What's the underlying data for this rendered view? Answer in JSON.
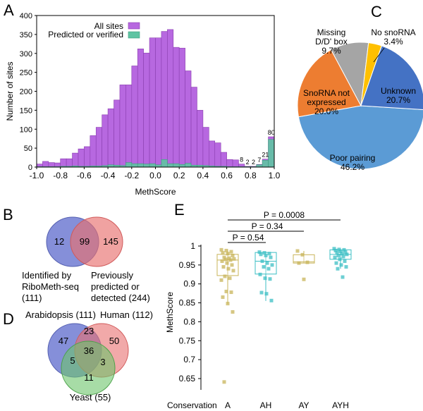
{
  "panels": {
    "A": "A",
    "B": "B",
    "C": "C",
    "D": "D",
    "E": "E"
  },
  "chart_data": [
    {
      "type": "bar",
      "panel": "A",
      "xlabel": "MethScore",
      "ylabel": "Number of sites",
      "xlim": [
        -1.0,
        1.0
      ],
      "ylim": [
        0,
        400
      ],
      "xticks": [
        "-1.0",
        "-0.8",
        "-0.6",
        "-0.4",
        "-0.2",
        "0.0",
        "0.2",
        "0.4",
        "0.6",
        "0.8",
        "1.0"
      ],
      "yticks": [
        "0",
        "50",
        "100",
        "150",
        "200",
        "250",
        "300",
        "350",
        "400"
      ],
      "legend_position": "top-left",
      "bin_starts": [
        -1.0,
        -0.95,
        -0.9,
        -0.85,
        -0.8,
        -0.75,
        -0.7,
        -0.65,
        -0.6,
        -0.55,
        -0.5,
        -0.45,
        -0.4,
        -0.35,
        -0.3,
        -0.25,
        -0.2,
        -0.15,
        -0.1,
        -0.05,
        0.0,
        0.05,
        0.1,
        0.15,
        0.2,
        0.25,
        0.3,
        0.35,
        0.4,
        0.45,
        0.5,
        0.55,
        0.6,
        0.65,
        0.7,
        0.75,
        0.8,
        0.85,
        0.9,
        0.95
      ],
      "bin_width": 0.05,
      "series": [
        {
          "name": "All sites",
          "color": "#b768e0",
          "values": [
            8,
            15,
            12,
            11,
            22,
            22,
            37,
            48,
            54,
            83,
            105,
            138,
            154,
            177,
            217,
            217,
            267,
            312,
            301,
            341,
            341,
            358,
            363,
            316,
            314,
            254,
            211,
            150,
            105,
            69,
            64,
            39,
            20,
            19,
            8,
            2,
            2,
            7,
            21,
            80
          ]
        },
        {
          "name": "Predicted or verified",
          "color": "#5fc4a3",
          "values": [
            1,
            1,
            1,
            1,
            2,
            2,
            3,
            2,
            2,
            3,
            3,
            4,
            6,
            5,
            4,
            12,
            9,
            9,
            8,
            9,
            6,
            20,
            9,
            9,
            7,
            10,
            5,
            5,
            4,
            3,
            2,
            2,
            1,
            1,
            1,
            1,
            1,
            6,
            18,
            73
          ]
        }
      ],
      "annotations": [
        "8",
        "2",
        "2",
        "7",
        "21",
        "80"
      ],
      "annotation_bins": [
        0.7,
        0.75,
        0.8,
        0.85,
        0.9,
        0.95
      ]
    },
    {
      "type": "pie",
      "panel": "C",
      "slices": [
        {
          "label": "Poor pairing",
          "value": 46.2,
          "text": "46.2%",
          "color": "#5b9bd5"
        },
        {
          "label": "SnoRNA not expressed",
          "value": 20.0,
          "text": "20.0%",
          "color": "#ed7d31"
        },
        {
          "label": "Missing D/D' box",
          "value": 9.7,
          "text": "9.7%",
          "color": "#a5a5a5"
        },
        {
          "label": "No snoRNA",
          "value": 3.4,
          "text": "3.4%",
          "color": "#ffc000"
        },
        {
          "label": "Unknown",
          "value": 20.7,
          "text": "20.7%",
          "color": "#4472c4"
        }
      ]
    },
    {
      "type": "venn",
      "panel": "B",
      "sets": [
        {
          "label": "Identified by RiboMeth-seq (111)",
          "lines": [
            "Identified by",
            "RiboMeth-seq",
            "(111)"
          ],
          "color": "#6673cf"
        },
        {
          "label": "Previously predicted or detected (244)",
          "lines": [
            "Previously",
            "predicted or",
            "detected (244)"
          ],
          "color": "#e8706f"
        }
      ],
      "regions": {
        "only_a": "12",
        "both": "99",
        "only_b": "145"
      }
    },
    {
      "type": "venn",
      "panel": "D",
      "sets": [
        {
          "label": "Arabidopsis (111)",
          "color": "#6673cf"
        },
        {
          "label": "Human (112)",
          "color": "#e8706f"
        },
        {
          "label": "Yeast (55)",
          "color": "#6cc46a"
        }
      ],
      "regions": {
        "a": "47",
        "ah": "23",
        "h": "50",
        "ahy": "36",
        "ay": "5",
        "hy": "3",
        "y": "11"
      }
    },
    {
      "type": "box",
      "panel": "E",
      "ylabel": "MethScore",
      "xlabel": "Conservation",
      "ylim": [
        0.62,
        1.0
      ],
      "yticks": [
        "0.65",
        "0.7",
        "0.75",
        "0.8",
        "0.85",
        "0.9",
        "0.95",
        "1"
      ],
      "categories": [
        "A",
        "AH",
        "AY",
        "AYH"
      ],
      "colors": [
        "#c8b45a",
        "#3cbfc4",
        "#c8b45a",
        "#3cbfc4"
      ],
      "boxes": [
        {
          "q1": 0.922,
          "median": 0.963,
          "q3": 0.978,
          "whisker_low": 0.848,
          "whisker_high": 0.99,
          "points": [
            0.99,
            0.988,
            0.985,
            0.982,
            0.98,
            0.975,
            0.97,
            0.968,
            0.966,
            0.965,
            0.963,
            0.96,
            0.955,
            0.95,
            0.945,
            0.94,
            0.935,
            0.92,
            0.915,
            0.91,
            0.88,
            0.878,
            0.865,
            0.848,
            0.826,
            0.641
          ]
        },
        {
          "q1": 0.926,
          "median": 0.96,
          "q3": 0.983,
          "whisker_low": 0.855,
          "whisker_high": 0.985,
          "points": [
            0.984,
            0.982,
            0.98,
            0.978,
            0.975,
            0.97,
            0.96,
            0.955,
            0.95,
            0.945,
            0.94,
            0.925,
            0.915,
            0.913,
            0.877,
            0.874,
            0.856
          ]
        },
        {
          "q1": 0.955,
          "median": 0.958,
          "q3": 0.977,
          "whisker_low": 0.955,
          "whisker_high": 0.987,
          "points": [
            0.987,
            0.977,
            0.957,
            0.955,
            0.912
          ]
        },
        {
          "q1": 0.965,
          "median": 0.978,
          "q3": 0.99,
          "whisker_low": 0.94,
          "whisker_high": 0.993,
          "points": [
            0.993,
            0.991,
            0.99,
            0.988,
            0.986,
            0.984,
            0.982,
            0.98,
            0.978,
            0.975,
            0.972,
            0.97,
            0.965,
            0.96,
            0.955,
            0.95,
            0.945,
            0.94,
            0.918
          ]
        }
      ],
      "comparisons": [
        {
          "from": "A",
          "to": "AYH",
          "label": "P = 0.0008"
        },
        {
          "from": "A",
          "to": "AY",
          "label": "P = 0.34"
        },
        {
          "from": "A",
          "to": "AH",
          "label": "P = 0.54"
        }
      ]
    }
  ]
}
